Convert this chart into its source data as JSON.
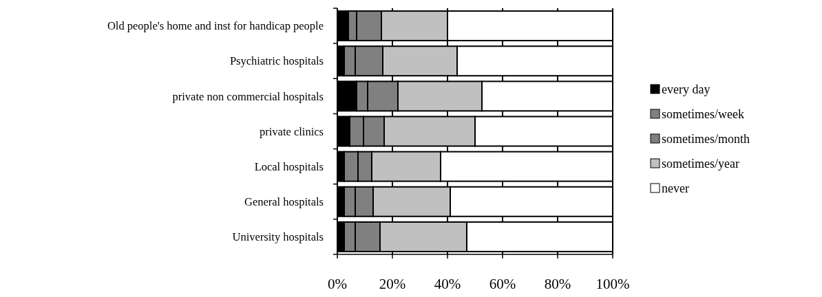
{
  "chart_data": {
    "type": "bar",
    "orientation": "horizontal",
    "stacked": true,
    "categories": [
      "Old people's home and inst for handicap people",
      "Psychiatric hospitals",
      "private non commercial hospitals",
      "private clinics",
      "Local hospitals",
      "General hospitals",
      "University hospitals"
    ],
    "series": [
      {
        "name": "every day",
        "color": "#000000",
        "values": [
          4,
          2.5,
          7,
          4.5,
          2.5,
          2.5,
          2.5
        ]
      },
      {
        "name": "sometimes/week",
        "color": "#808080",
        "values": [
          3,
          4,
          4,
          5,
          5,
          4,
          4
        ]
      },
      {
        "name": "sometimes/month",
        "color": "#808080",
        "values": [
          9,
          10,
          11,
          7.5,
          5,
          6.5,
          9
        ]
      },
      {
        "name": "sometimes/year",
        "color": "#c0c0c0",
        "values": [
          24,
          27,
          30.5,
          33,
          25,
          28,
          31.5
        ]
      },
      {
        "name": "never",
        "color": "#ffffff",
        "values": [
          60,
          56.5,
          47.5,
          50,
          62.5,
          59,
          53
        ]
      }
    ],
    "xlim": [
      0,
      100
    ],
    "xticks": [
      {
        "value": 0,
        "label": "0%"
      },
      {
        "value": 20,
        "label": "20%"
      },
      {
        "value": 40,
        "label": "40%"
      },
      {
        "value": 60,
        "label": "60%"
      },
      {
        "value": 80,
        "label": "80%"
      },
      {
        "value": 100,
        "label": "100%"
      }
    ],
    "grid": "x",
    "legend": "right"
  }
}
